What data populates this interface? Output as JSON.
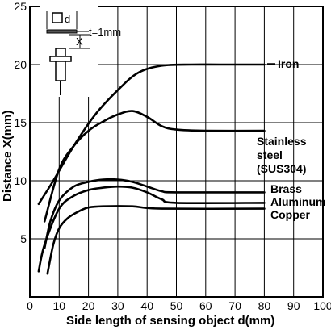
{
  "chart_data": {
    "type": "line",
    "xlabel": "Side length of sensing object d(mm)",
    "ylabel": "Distance X(mm)",
    "xlim": [
      0,
      100
    ],
    "ylim": [
      0,
      25
    ],
    "xticks": [
      0,
      10,
      20,
      30,
      40,
      50,
      60,
      70,
      80,
      90,
      100
    ],
    "yticks": [
      5,
      10,
      15,
      20,
      25
    ],
    "grid": true,
    "series": [
      {
        "name": "Iron",
        "x": [
          3,
          8,
          15,
          22,
          30,
          37,
          45,
          55,
          65,
          80
        ],
        "y": [
          8,
          10,
          13,
          15.6,
          17.8,
          19.3,
          19.9,
          20,
          20,
          20
        ]
      },
      {
        "name": "Stainless steel (SUS304)",
        "x": [
          5,
          10,
          15,
          20,
          25,
          30,
          35,
          40,
          45,
          50,
          60,
          80
        ],
        "y": [
          6.5,
          11,
          13,
          14.3,
          15.1,
          15.7,
          16,
          15.5,
          14.7,
          14.4,
          14.3,
          14.3
        ]
      },
      {
        "name": "Brass",
        "x": [
          5,
          7,
          10,
          15,
          20,
          25,
          30,
          35,
          40,
          45,
          50,
          80
        ],
        "y": [
          4.2,
          6.5,
          8.3,
          9.5,
          9.9,
          10.1,
          10.1,
          9.9,
          9.5,
          9.1,
          9.0,
          9.0
        ]
      },
      {
        "name": "Aluminum",
        "x": [
          3,
          5,
          10,
          15,
          20,
          25,
          30,
          35,
          40,
          45,
          50,
          80
        ],
        "y": [
          2.2,
          4.5,
          7.6,
          8.7,
          9.2,
          9.4,
          9.5,
          9.4,
          9.0,
          8.4,
          8.1,
          8.1
        ]
      },
      {
        "name": "Copper",
        "x": [
          6,
          8,
          10,
          13,
          17,
          20,
          25,
          35,
          45,
          80
        ],
        "y": [
          2.0,
          4.5,
          5.9,
          6.8,
          7.4,
          7.7,
          7.8,
          7.8,
          7.6,
          7.6
        ]
      }
    ],
    "labels": {
      "iron": "Iron",
      "stainless_1": "Stainless",
      "stainless_2": "steel",
      "stainless_3": "(SUS304)",
      "brass": "Brass",
      "aluminum": "Aluminum",
      "copper": "Copper"
    },
    "inset": {
      "d_label": "d",
      "x_label": "X",
      "t_label": "t=1mm"
    }
  }
}
